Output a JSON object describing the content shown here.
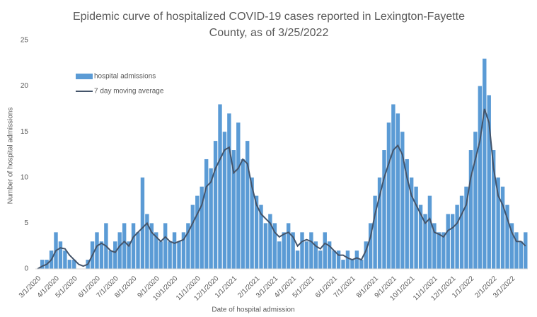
{
  "chart_data": {
    "type": "bar",
    "title": "Epidemic curve of hospitalized COVID-19 cases reported in Lexington-Fayette County, as of 3/25/2022",
    "x_label": "Date of hospital admission",
    "y_label": "Number of hospital admissions",
    "categories": [
      "3/1/2020",
      null,
      null,
      null,
      "4/1/2020",
      null,
      null,
      null,
      "5/1/2020",
      null,
      null,
      null,
      null,
      "6/1/2020",
      null,
      null,
      null,
      "7/1/2020",
      null,
      null,
      null,
      "8/1/2020",
      null,
      null,
      null,
      null,
      "9/1/2020",
      null,
      null,
      null,
      "10/1/2020",
      null,
      null,
      null,
      null,
      "11/1/2020",
      null,
      null,
      null,
      "12/1/2020",
      null,
      null,
      null,
      "1/1/2021",
      null,
      null,
      null,
      null,
      "2/1/2021",
      null,
      null,
      null,
      "3/1/2021",
      null,
      null,
      null,
      "4/1/2021",
      null,
      null,
      null,
      "5/1/2021",
      null,
      null,
      null,
      null,
      "6/1/2021",
      null,
      null,
      null,
      "7/1/2021",
      null,
      null,
      null,
      null,
      "8/1/2021",
      null,
      null,
      null,
      "9/1/2021",
      null,
      null,
      null,
      "10/1/2021",
      null,
      null,
      null,
      null,
      "11/1/2021",
      null,
      null,
      null,
      "12/1/2021",
      null,
      null,
      null,
      "1/1/2022",
      null,
      null,
      null,
      null,
      "2/1/2022",
      null,
      null,
      null,
      "3/1/2022",
      null,
      null,
      null
    ],
    "series": [
      {
        "name": "hospital admissions",
        "type": "bar",
        "color": "#5b9bd5",
        "values": [
          0,
          1,
          1,
          2,
          4,
          3,
          2,
          1,
          1,
          0,
          0,
          1,
          3,
          4,
          3,
          5,
          2,
          3,
          4,
          5,
          3,
          5,
          4,
          10,
          6,
          5,
          4,
          3,
          5,
          3,
          4,
          3,
          4,
          5,
          7,
          8,
          9,
          12,
          11,
          14,
          18,
          15,
          17,
          13,
          16,
          12,
          14,
          10,
          8,
          7,
          5,
          6,
          5,
          3,
          4,
          5,
          4,
          2,
          4,
          3,
          4,
          3,
          2,
          4,
          3,
          2,
          2,
          1,
          2,
          1,
          2,
          1,
          3,
          5,
          8,
          10,
          13,
          16,
          18,
          17,
          15,
          12,
          10,
          9,
          7,
          6,
          8,
          5,
          4,
          4,
          6,
          6,
          7,
          8,
          9,
          13,
          15,
          20,
          23,
          19,
          13,
          10,
          9,
          7,
          5,
          4,
          3,
          4
        ]
      },
      {
        "name": "7 day moving average",
        "type": "line",
        "color": "#44546a",
        "values": [
          0,
          0.3,
          0.5,
          1,
          2,
          2.3,
          2.2,
          1.5,
          1,
          0.5,
          0.3,
          0.5,
          1.5,
          2.5,
          2.8,
          2.5,
          2,
          1.8,
          2.5,
          3,
          2.5,
          3.5,
          4,
          4.5,
          5,
          4,
          3.5,
          3,
          3.5,
          3,
          2.8,
          3,
          3.2,
          4,
          5,
          6,
          7,
          9,
          9.5,
          11,
          12,
          13,
          13.3,
          10.5,
          11,
          12,
          11.5,
          9,
          7,
          6,
          5.5,
          5,
          4,
          3.5,
          3.8,
          4,
          3.5,
          2.5,
          3,
          3.2,
          3,
          2.5,
          2.2,
          2.8,
          2.5,
          2,
          1.5,
          1.5,
          1.2,
          1,
          1.2,
          1,
          2,
          3.5,
          6,
          8,
          10,
          11.5,
          13,
          13.5,
          12.5,
          10,
          8,
          7,
          6,
          5,
          5.5,
          4,
          3.8,
          3.5,
          4.2,
          4.5,
          5,
          6,
          7,
          10,
          12,
          14,
          17.5,
          16,
          11,
          8,
          7,
          5.5,
          4,
          3,
          3,
          2.5
        ]
      }
    ],
    "ylim": [
      0,
      25
    ],
    "yticks": [
      0,
      5,
      10,
      15,
      20,
      25
    ],
    "grid": false
  }
}
